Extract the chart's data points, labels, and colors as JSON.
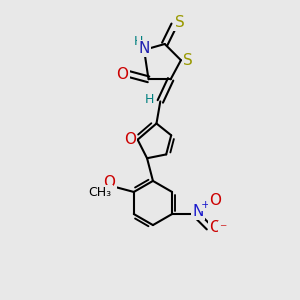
{
  "background_color": "#e8e8e8",
  "bond_color": "#000000",
  "bond_width": 1.5,
  "figsize": [
    3.0,
    3.0
  ],
  "dpi": 100,
  "colors": {
    "N": "#2020b0",
    "H": "#008080",
    "O": "#cc0000",
    "S": "#999900",
    "black": "#000000",
    "Nnitro": "#1a1acc",
    "Onitro": "#cc0000"
  }
}
